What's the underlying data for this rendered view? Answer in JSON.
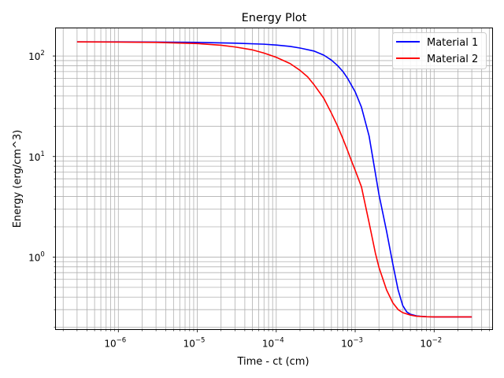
{
  "chart_data": {
    "type": "line",
    "title": "Energy Plot",
    "xlabel": "Time - ct (cm)",
    "ylabel": "Energy (erg/cm^3)",
    "xscale": "log",
    "yscale": "log",
    "xlim": [
      1.6e-07,
      0.055
    ],
    "ylim": [
      0.19,
      190
    ],
    "grid": "major+minor",
    "legend_position": "top-right",
    "x_major_ticks": [
      {
        "value": 1e-06,
        "base": "10",
        "exp": "−6"
      },
      {
        "value": 1e-05,
        "base": "10",
        "exp": "−5"
      },
      {
        "value": 0.0001,
        "base": "10",
        "exp": "−4"
      },
      {
        "value": 0.001,
        "base": "10",
        "exp": "−3"
      },
      {
        "value": 0.01,
        "base": "10",
        "exp": "−2"
      }
    ],
    "y_major_ticks": [
      {
        "value": 1,
        "base": "10",
        "exp": "0"
      },
      {
        "value": 10,
        "base": "10",
        "exp": "1"
      },
      {
        "value": 100,
        "base": "10",
        "exp": "2"
      }
    ],
    "series": [
      {
        "name": "Material 1",
        "color": "#0000ff",
        "x": [
          3e-07,
          1e-06,
          3e-06,
          1e-05,
          3e-05,
          7e-05,
          0.0001,
          0.00015,
          0.0002,
          0.0003,
          0.0004,
          0.0005,
          0.0006,
          0.0007,
          0.0008,
          0.001,
          0.0012,
          0.0015,
          0.002,
          0.0025,
          0.003,
          0.0035,
          0.004,
          0.0045,
          0.005,
          0.006,
          0.007,
          0.008,
          0.01,
          0.015,
          0.03
        ],
        "y": [
          138,
          138,
          137.5,
          136.5,
          134,
          131,
          128.5,
          124.5,
          120,
          112,
          102,
          91,
          80,
          70,
          60,
          44,
          31,
          16,
          4.2,
          1.8,
          0.85,
          0.47,
          0.33,
          0.285,
          0.27,
          0.26,
          0.257,
          0.255,
          0.254,
          0.254,
          0.254
        ]
      },
      {
        "name": "Material 2",
        "color": "#ff0000",
        "x": [
          3e-07,
          1e-06,
          3e-06,
          1e-05,
          2e-05,
          3e-05,
          5e-05,
          7e-05,
          0.0001,
          0.00015,
          0.0002,
          0.00025,
          0.0003,
          0.0004,
          0.0005,
          0.0006,
          0.0007,
          0.0008,
          0.0009,
          0.001,
          0.0012,
          0.0015,
          0.0018,
          0.002,
          0.0025,
          0.003,
          0.0035,
          0.004,
          0.005,
          0.006,
          0.008,
          0.01,
          0.015,
          0.03
        ],
        "y": [
          138,
          137.5,
          136.5,
          133,
          128,
          123,
          115,
          107,
          97,
          84,
          72,
          62,
          52,
          38,
          27,
          20,
          15,
          11.5,
          9,
          7.3,
          5,
          2.2,
          1.1,
          0.79,
          0.47,
          0.35,
          0.3,
          0.28,
          0.265,
          0.258,
          0.255,
          0.254,
          0.254,
          0.254
        ]
      }
    ]
  }
}
